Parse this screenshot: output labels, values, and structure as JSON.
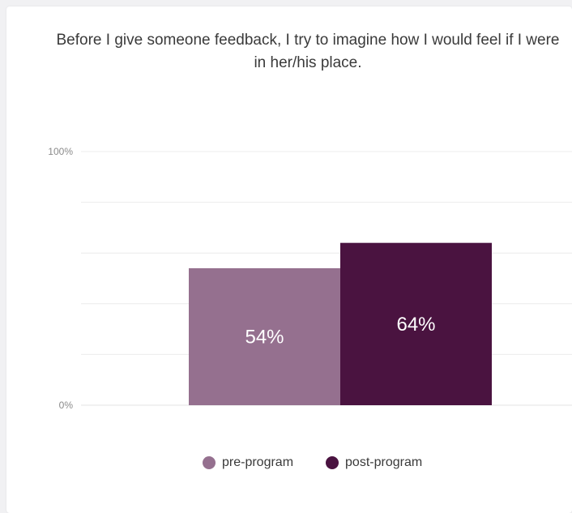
{
  "chart_data": {
    "type": "bar",
    "title": "Before I give someone feedback, I try to imagine how I would feel if I were in her/his place.",
    "categories": [
      ""
    ],
    "series": [
      {
        "name": "pre-program",
        "values": [
          54
        ],
        "color": "#95708f"
      },
      {
        "name": "post-program",
        "values": [
          64
        ],
        "color": "#4a1340"
      }
    ],
    "data_labels": [
      "54%",
      "64%"
    ],
    "ylim": [
      0,
      100
    ],
    "yticks": [
      {
        "value": 0,
        "label": "0%"
      },
      {
        "value": 100,
        "label": "100%"
      }
    ],
    "grid": true,
    "legend_position": "bottom"
  }
}
